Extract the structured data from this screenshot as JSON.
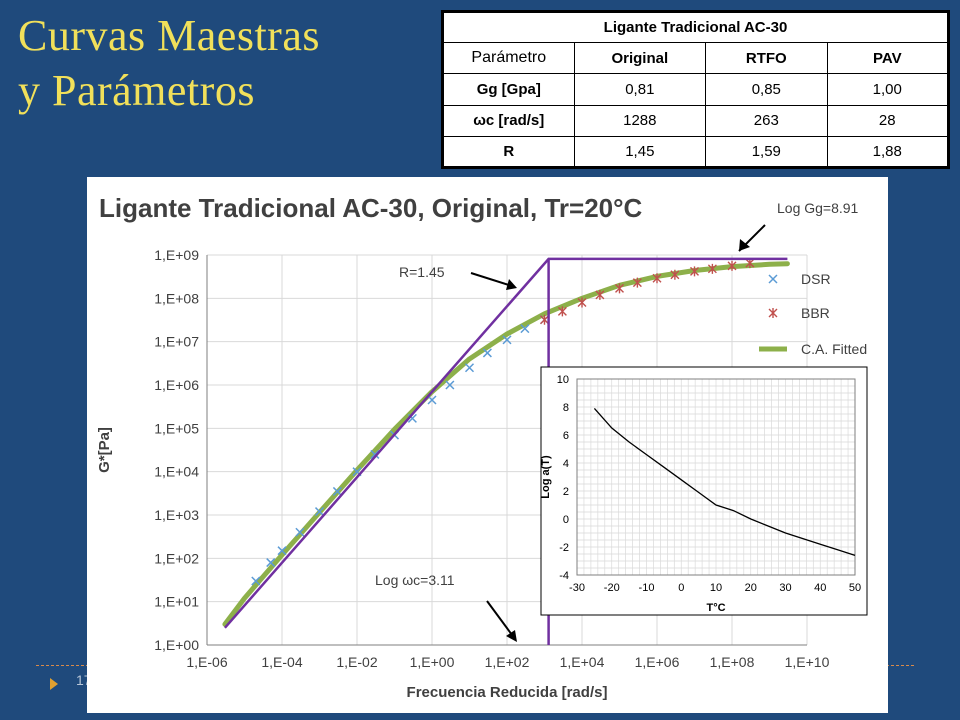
{
  "slide": {
    "title_line1": "Curvas Maestras",
    "title_line2": "y Parámetros",
    "page_number": "17"
  },
  "table": {
    "caption": "Ligante Tradicional AC-30",
    "headers": [
      "Parámetro",
      "Original",
      "RTFO",
      "PAV"
    ],
    "rows": [
      {
        "param": "Gg [Gpa]",
        "values": [
          "0,81",
          "0,85",
          "1,00"
        ]
      },
      {
        "param": "ωc [rad/s]",
        "values": [
          "1288",
          "263",
          "28"
        ]
      },
      {
        "param": "R",
        "values": [
          "1,45",
          "1,59",
          "1,88"
        ]
      }
    ]
  },
  "chart_data": [
    {
      "type": "line",
      "title": "Ligante Tradicional AC-30, Original, Tr=20°C",
      "xlabel": "Frecuencia Reducida [rad/s]",
      "ylabel": "G*[Pa]",
      "x_scale": "log",
      "y_scale": "log",
      "xlim": [
        1e-06,
        10000000000.0
      ],
      "ylim": [
        1,
        1000000000.0
      ],
      "x_ticks": [
        "1,E-06",
        "1,E-04",
        "1,E-02",
        "1,E+00",
        "1,E+02",
        "1,E+04",
        "1,E+06",
        "1,E+08",
        "1,E+10"
      ],
      "y_ticks": [
        "1,E+00",
        "1,E+01",
        "1,E+02",
        "1,E+03",
        "1,E+04",
        "1,E+05",
        "1,E+06",
        "1,E+07",
        "1,E+08",
        "1,E+09"
      ],
      "grid": true,
      "legend_position": "right",
      "annotations": [
        "Log Gg=8.91",
        "R=1.45",
        "Log ωc=3.11"
      ],
      "series": [
        {
          "name": "DSR",
          "marker": "x",
          "color": "#5b9bd5",
          "x": [
            2e-05,
            5e-05,
            0.0001,
            0.0003,
            0.001,
            0.003,
            0.01,
            0.03,
            0.1,
            0.3,
            1,
            3,
            10,
            30,
            100,
            300,
            1000
          ],
          "y": [
            30,
            80,
            150,
            400,
            1200,
            3500,
            10000,
            25000,
            70000,
            170000,
            450000,
            1000000,
            2500000,
            5500000,
            11000000,
            20000000,
            32000000
          ]
        },
        {
          "name": "BBR",
          "marker": "asterisk",
          "color": "#c0504d",
          "x": [
            1000,
            3000,
            10000,
            30000,
            100000,
            300000,
            1000000,
            3000000,
            10000000,
            30000000,
            100000000,
            300000000
          ],
          "y": [
            32000000,
            50000000,
            80000000,
            120000000,
            170000000,
            230000000,
            290000000,
            350000000,
            420000000,
            480000000,
            560000000,
            650000000
          ]
        },
        {
          "name": "C.A. Fitted",
          "color": "#8db04a",
          "x": [
            3e-06,
            1e-05,
            0.0001,
            0.001,
            0.01,
            0.1,
            1,
            10,
            100,
            1000,
            10000,
            100000,
            1000000,
            10000000,
            100000000,
            1000000000,
            3000000000
          ],
          "y": [
            3,
            12,
            120,
            1150,
            10800,
            95000,
            700000,
            4000000,
            15000000,
            44000000,
            100000000,
            200000000,
            320000000,
            440000000,
            540000000,
            610000000,
            630000000
          ]
        },
        {
          "name": "Asymptotes",
          "color": "#7030a0",
          "x": [
            3e-06,
            1288,
            1288,
            3000000000
          ],
          "y": [
            2.5,
            812831000,
            812831000,
            812831000
          ]
        },
        {
          "name": "ωc line",
          "color": "#7030a0",
          "x": [
            1288,
            1288
          ],
          "y": [
            1,
            812831000
          ]
        }
      ]
    },
    {
      "type": "line",
      "title": "",
      "xlabel": "T°C",
      "ylabel": "Log a(T)",
      "xlim": [
        -30,
        50
      ],
      "ylim": [
        -4,
        10
      ],
      "x_ticks": [
        "-30",
        "-20",
        "-10",
        "0",
        "10",
        "20",
        "30",
        "40",
        "50"
      ],
      "y_ticks": [
        "-4",
        "-2",
        "0",
        "2",
        "4",
        "6",
        "8",
        "10"
      ],
      "grid": true,
      "series": [
        {
          "color": "#000000",
          "x": [
            -25,
            -20,
            -15,
            -10,
            -5,
            0,
            5,
            10,
            15,
            20,
            25,
            30,
            35,
            40,
            45,
            50
          ],
          "y": [
            7.9,
            6.5,
            5.5,
            4.6,
            3.7,
            2.8,
            1.9,
            1.0,
            0.6,
            0.0,
            -0.5,
            -1.0,
            -1.4,
            -1.8,
            -2.2,
            -2.6
          ]
        }
      ]
    }
  ]
}
